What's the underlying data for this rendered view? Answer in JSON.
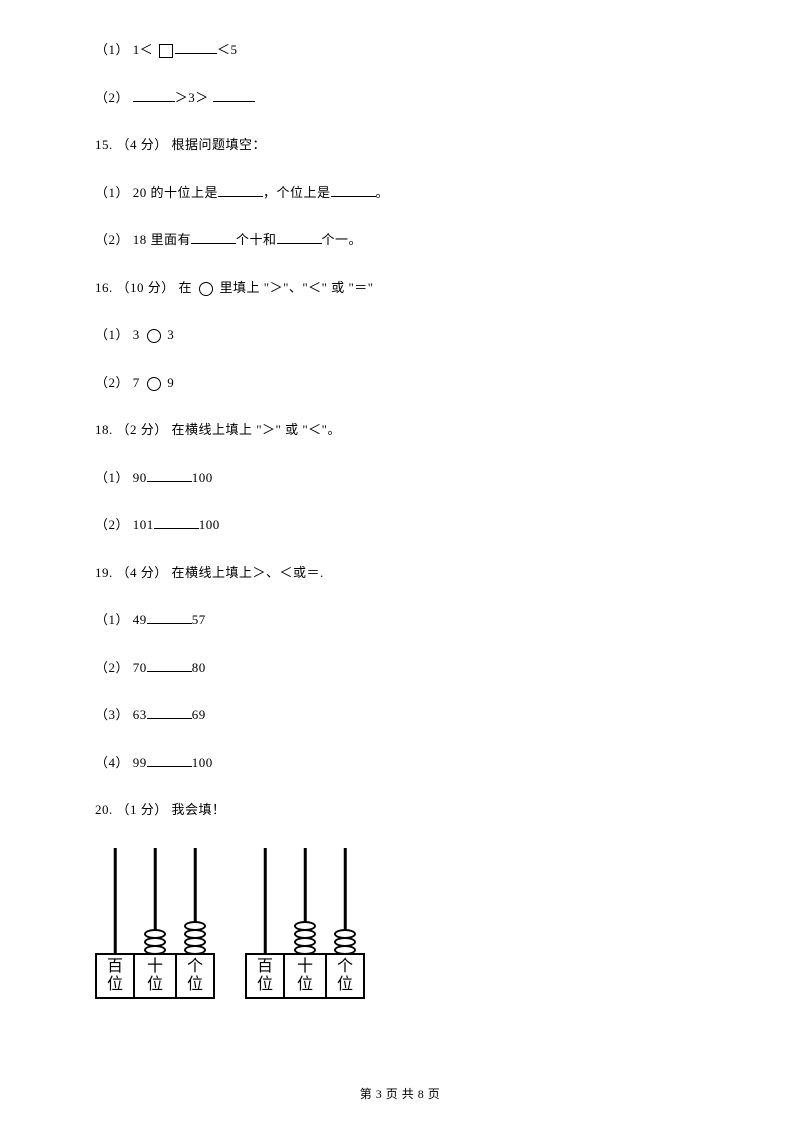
{
  "colors": {
    "text": "#000000",
    "bg": "#ffffff"
  },
  "q14": {
    "sub1": {
      "prefix": "（1） 1＜ ",
      "after_box_suffix": "＜5"
    },
    "sub2": {
      "prefix": "（2） ",
      "mid": "＞3＞ "
    }
  },
  "q15": {
    "header": "15.  （4 分）  根据问题填空：",
    "sub1a": "（1） 20 的十位上是",
    "sub1b": "，个位上是",
    "sub1c": "。",
    "sub2a": "（2） 18 里面有",
    "sub2b": "个十和",
    "sub2c": "个一。"
  },
  "q16": {
    "header_a": "16.  （10 分）  在 ",
    "header_b": " 里填上 \"＞\"、\"＜\" 或 \"＝\"",
    "sub1a": "（1）  3  ",
    "sub1b": "  3",
    "sub2a": "（2）  7  ",
    "sub2b": "  9"
  },
  "q18": {
    "header": "18.  （2 分）  在横线上填上 \"＞\" 或 \"＜\"。",
    "sub1a": "（1） 90",
    "sub1b": "100",
    "sub2a": "（2） 101",
    "sub2b": "100"
  },
  "q19": {
    "header": "19.  （4 分）  在横线上填上＞、＜或＝.",
    "sub1a": "（1） 49",
    "sub1b": "57",
    "sub2a": "（2） 70",
    "sub2b": "80",
    "sub3a": "（3） 63",
    "sub3b": "69",
    "sub4a": "（4） 99",
    "sub4b": "100"
  },
  "q20": {
    "header": "20.  （1 分）  我会填！"
  },
  "abacus": {
    "labels": {
      "hundreds": "百位",
      "tens": "十位",
      "ones": "个位"
    },
    "chart1": {
      "beads": [
        0,
        3,
        4
      ]
    },
    "chart2": {
      "beads": [
        0,
        4,
        3
      ]
    },
    "rod_color": "#000000",
    "bead_border": "#000000",
    "bead_fill": "#ffffff",
    "box_border": "#000000",
    "label_fontsize": 16
  },
  "footer": {
    "text": "第 3 页 共 8 页"
  }
}
